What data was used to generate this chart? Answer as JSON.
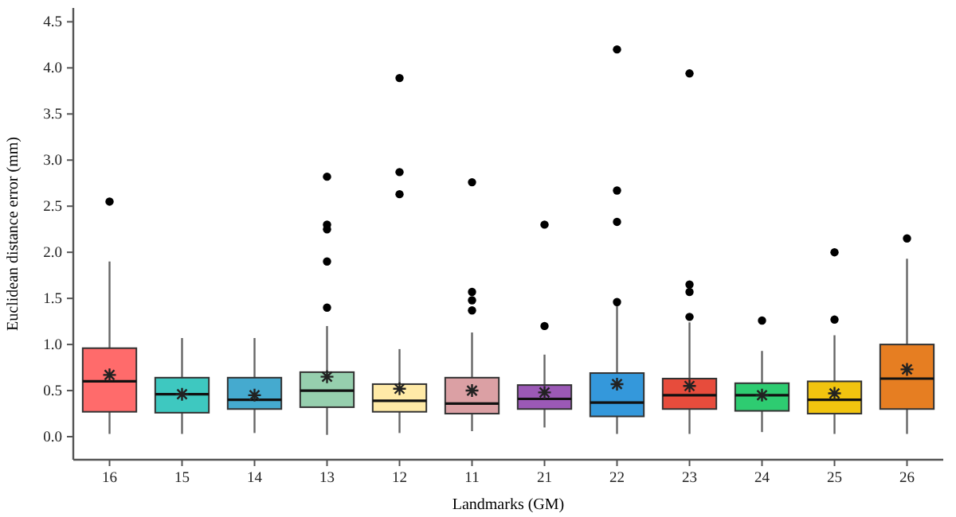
{
  "chart_data": {
    "type": "box",
    "xlabel": "Landmarks (GM)",
    "ylabel": "Euclidean distance error (mm)",
    "categories": [
      "16",
      "15",
      "14",
      "13",
      "12",
      "11",
      "21",
      "22",
      "23",
      "24",
      "25",
      "26"
    ],
    "colors": [
      "#ff6b6b",
      "#3ec8c0",
      "#45aacf",
      "#96cfae",
      "#ffeaa7",
      "#dba0a4",
      "#9b59b6",
      "#3498db",
      "#e74c3c",
      "#2ecc71",
      "#f1c40f",
      "#e67e22"
    ],
    "boxes": [
      {
        "low": 0.03,
        "q1": 0.27,
        "median": 0.6,
        "q3": 0.96,
        "high": 1.9,
        "mean": 0.67,
        "outliers": [
          2.55
        ]
      },
      {
        "low": 0.03,
        "q1": 0.26,
        "median": 0.46,
        "q3": 0.64,
        "high": 1.07,
        "mean": 0.46
      },
      {
        "low": 0.04,
        "q1": 0.3,
        "median": 0.4,
        "q3": 0.64,
        "high": 1.07,
        "mean": 0.45
      },
      {
        "low": 0.02,
        "q1": 0.32,
        "median": 0.5,
        "q3": 0.7,
        "high": 1.2,
        "mean": 0.65,
        "outliers": [
          1.4,
          1.9,
          2.25,
          2.3,
          2.82
        ]
      },
      {
        "low": 0.04,
        "q1": 0.27,
        "median": 0.39,
        "q3": 0.57,
        "high": 0.95,
        "mean": 0.52,
        "outliers": [
          2.63,
          2.87,
          3.89
        ]
      },
      {
        "low": 0.06,
        "q1": 0.25,
        "median": 0.36,
        "q3": 0.64,
        "high": 1.13,
        "mean": 0.5,
        "outliers": [
          1.37,
          1.48,
          1.57,
          2.76
        ]
      },
      {
        "low": 0.1,
        "q1": 0.3,
        "median": 0.41,
        "q3": 0.56,
        "high": 0.89,
        "mean": 0.48,
        "outliers": [
          1.2,
          2.3
        ]
      },
      {
        "low": 0.03,
        "q1": 0.22,
        "median": 0.37,
        "q3": 0.69,
        "high": 1.43,
        "mean": 0.57,
        "outliers": [
          1.46,
          2.33,
          2.67,
          4.2
        ]
      },
      {
        "low": 0.03,
        "q1": 0.3,
        "median": 0.45,
        "q3": 0.63,
        "high": 1.24,
        "mean": 0.55,
        "outliers": [
          1.3,
          1.57,
          1.65,
          3.94
        ]
      },
      {
        "low": 0.05,
        "q1": 0.28,
        "median": 0.45,
        "q3": 0.58,
        "high": 0.93,
        "mean": 0.45,
        "outliers": [
          1.26
        ]
      },
      {
        "low": 0.03,
        "q1": 0.25,
        "median": 0.4,
        "q3": 0.6,
        "high": 1.1,
        "mean": 0.47,
        "outliers": [
          1.27,
          2.0
        ]
      },
      {
        "low": 0.03,
        "q1": 0.3,
        "median": 0.63,
        "q3": 1.0,
        "high": 1.93,
        "mean": 0.73,
        "outliers": [
          2.15
        ]
      }
    ],
    "ylim": [
      -0.25,
      4.65
    ],
    "yticks": [
      {
        "value": 0,
        "label": "0.0"
      },
      {
        "value": 0.5,
        "label": "0.5"
      },
      {
        "value": 1,
        "label": "1.0"
      },
      {
        "value": 1.5,
        "label": "1.5"
      },
      {
        "value": 2,
        "label": "2.0"
      },
      {
        "value": 2.5,
        "label": "2.5"
      },
      {
        "value": 3,
        "label": "3.0"
      },
      {
        "value": 3.5,
        "label": "3.5"
      },
      {
        "value": 4,
        "label": "4.0"
      },
      {
        "value": 4.5,
        "label": "4.5"
      }
    ],
    "grid": false
  }
}
